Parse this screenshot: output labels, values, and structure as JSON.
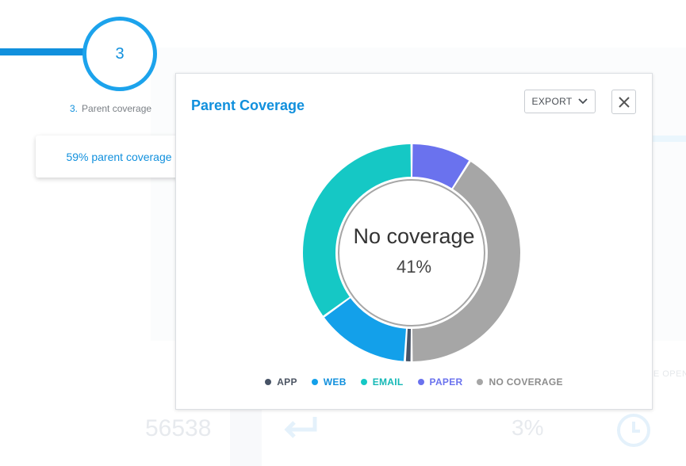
{
  "step": {
    "number": "3",
    "caption_number": "3.",
    "caption_label": "Parent coverage"
  },
  "coverage_card": {
    "label": "59% parent coverage"
  },
  "background": {
    "number_text": "56538",
    "percent_text": "3%",
    "right_text": "SE OPEN",
    "icons": [
      "return-arrow-icon",
      "clock-icon"
    ]
  },
  "modal": {
    "title": "Parent Coverage",
    "export_label": "EXPORT",
    "center_title": "No coverage",
    "center_value": "41%"
  },
  "chart_data": {
    "type": "pie",
    "categories": [
      "APP",
      "WEB",
      "EMAIL",
      "PAPER",
      "NO COVERAGE"
    ],
    "values": [
      1,
      14,
      35,
      9,
      41
    ],
    "colors": [
      "#475366",
      "#13a0ea",
      "#15c8c5",
      "#6a72ee",
      "#a6a6a6"
    ],
    "legend_text_colors": [
      "#4c5563",
      "#1190dd",
      "#14b8b6",
      "#6a72ee",
      "#8c8c8c"
    ],
    "legend_position": "bottom"
  }
}
